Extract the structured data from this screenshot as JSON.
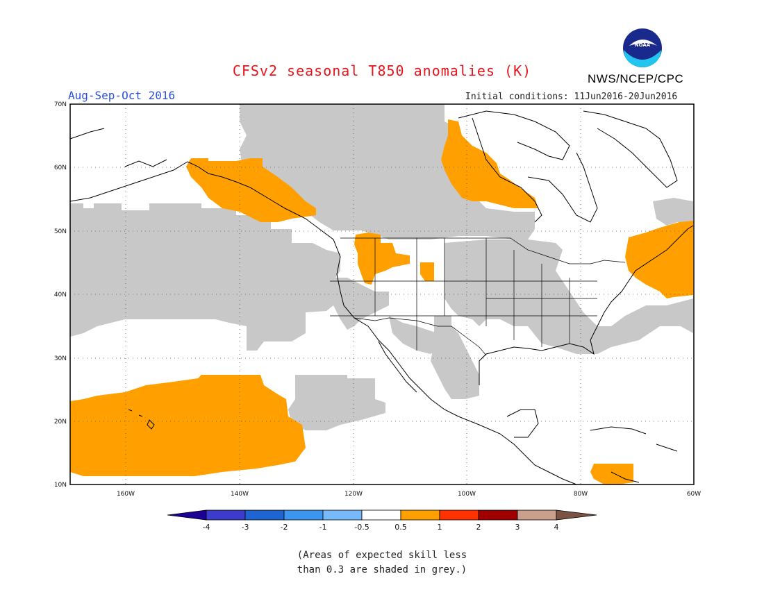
{
  "title": "CFSv2 seasonal T850 anomalies (K)",
  "period": "Aug-Sep-Oct 2016",
  "initial_conditions": "Initial conditions: 11Jun2016-20Jun2016",
  "agency": "NWS/NCEP/CPC",
  "logo": {
    "text": "NOAA",
    "icon": "noaa-logo-icon"
  },
  "map": {
    "lat_labels": [
      "70N",
      "60N",
      "50N",
      "40N",
      "30N",
      "20N",
      "10N"
    ],
    "lon_labels": [
      "160W",
      "140W",
      "120W",
      "100W",
      "80W",
      "60W"
    ],
    "colors": {
      "positive_anomaly": "#ffa000",
      "low_skill": "#c8c8c8",
      "coastline": "#000000"
    }
  },
  "colorbar": {
    "labels": [
      "-4",
      "-3",
      "-2",
      "-1",
      "-0.5",
      "0.5",
      "1",
      "2",
      "3",
      "4"
    ],
    "colors": [
      "#1c0096",
      "#3c3ccc",
      "#1e64d2",
      "#3c96f0",
      "#78b9fa",
      "#ffffff",
      "#ffa000",
      "#ff3200",
      "#a00000",
      "#c8a08c",
      "#7a5344"
    ]
  },
  "note_line1": "(Areas of expected skill less",
  "note_line2": "than 0.3 are shaded in grey.)"
}
